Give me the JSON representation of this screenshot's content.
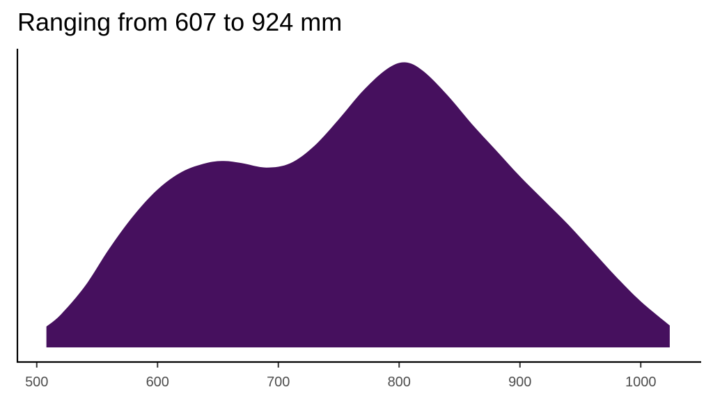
{
  "chart_data": {
    "type": "area",
    "title": "Ranging from 607 to 924 mm",
    "xlabel": "",
    "ylabel": "",
    "xlim": [
      484,
      1050
    ],
    "xticks": [
      500,
      600,
      700,
      800,
      900,
      1000
    ],
    "y_axis_ticks_shown": false,
    "grid": false,
    "legend": "none",
    "fill_color": "#46105E",
    "series": [
      {
        "x": [
          508,
          520,
          540,
          560,
          580,
          600,
          620,
          640,
          655,
          670,
          690,
          710,
          730,
          750,
          770,
          790,
          805,
          820,
          840,
          860,
          880,
          900,
          920,
          940,
          960,
          980,
          1000,
          1024
        ],
        "y": [
          0.095,
          0.15,
          0.28,
          0.45,
          0.6,
          0.72,
          0.8,
          0.84,
          0.85,
          0.84,
          0.82,
          0.84,
          0.92,
          1.04,
          1.17,
          1.27,
          1.3,
          1.26,
          1.15,
          1.02,
          0.9,
          0.78,
          0.67,
          0.56,
          0.44,
          0.32,
          0.21,
          0.1
        ]
      }
    ]
  }
}
